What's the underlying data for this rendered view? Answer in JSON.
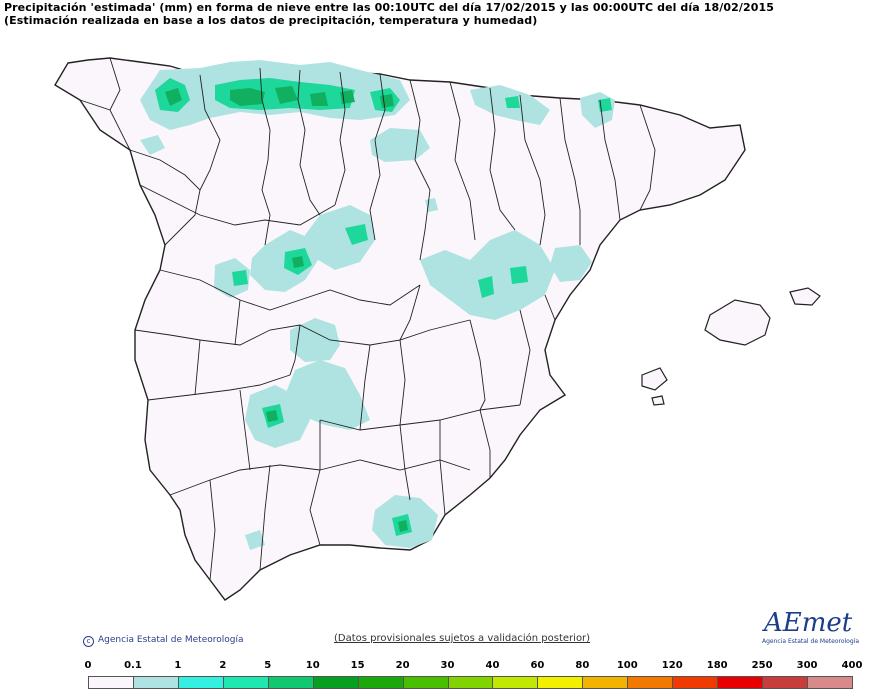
{
  "header": {
    "line1": "Precipitación 'estimada' (mm) en forma de nieve entre las 00:10UTC del día 17/02/2015 y las 00:00UTC del día 18/02/2015",
    "line2": "(Estimación realizada en base a los datos de precipitación, temperatura y humedad)"
  },
  "footer": {
    "agency": "Agencia Estatal de Meteorología",
    "notice": "(Datos provisionales sujetos a validación posterior)",
    "logo_text": "AEmet",
    "logo_tag": "Agencia Estatal de Meteorología"
  },
  "legend": {
    "labels": [
      "0",
      "0.1",
      "1",
      "2",
      "5",
      "10",
      "15",
      "20",
      "30",
      "40",
      "60",
      "80",
      "100",
      "120",
      "180",
      "250",
      "300",
      "400"
    ],
    "colors": [
      "#fbf6fb",
      "#aee3e1",
      "#33f0e0",
      "#1ee8b0",
      "#10c870",
      "#05a020",
      "#1aa80a",
      "#48c000",
      "#82d400",
      "#c0e800",
      "#f0f000",
      "#f2b400",
      "#f37800",
      "#f03a00",
      "#e80000",
      "#c83c3c",
      "#d88a8a",
      "#f0c8c8"
    ]
  },
  "colors": {
    "land": "#fbf6fb",
    "border": "#222222",
    "light_cyan": "#aee3e1",
    "medium_green": "#1ed79a",
    "dark_green": "#10b060"
  }
}
